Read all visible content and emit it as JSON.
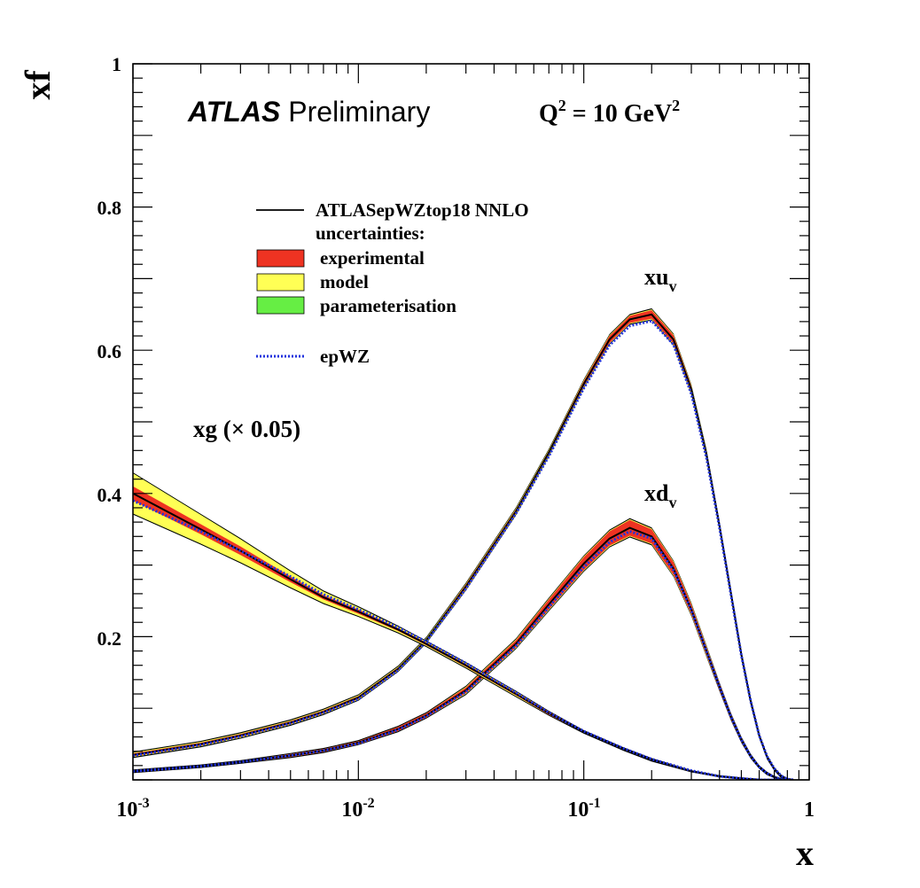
{
  "chart_data": {
    "type": "line",
    "xscale": "log",
    "xlim": [
      0.001,
      1
    ],
    "ylim": [
      0,
      1
    ],
    "xlabel": "x",
    "ylabel": "xf",
    "x_ticks": [
      {
        "value": 0.001,
        "base": "10",
        "exp": "-3"
      },
      {
        "value": 0.01,
        "base": "10",
        "exp": "-2"
      },
      {
        "value": 0.1,
        "base": "10",
        "exp": "-1"
      },
      {
        "value": 1,
        "base": "1",
        "exp": ""
      }
    ],
    "y_ticks": [
      {
        "value": 0.2,
        "label": "0.2"
      },
      {
        "value": 0.4,
        "label": "0.4"
      },
      {
        "value": 0.6,
        "label": "0.6"
      },
      {
        "value": 0.8,
        "label": "0.8"
      },
      {
        "value": 1.0,
        "label": "1"
      }
    ],
    "experiment": {
      "bold": "ATLAS",
      "rest": "Preliminary"
    },
    "scale": {
      "prefix": "Q",
      "sup1": "2",
      "mid": " = 10 GeV",
      "sup2": "2"
    },
    "legend": {
      "placement": "upper-left",
      "central": "ATLASepWZtop18 NNLO",
      "heading": "uncertainties:",
      "bands": [
        {
          "label": "experimental",
          "color": "#ee3322"
        },
        {
          "label": "model",
          "color": "#ffff55"
        },
        {
          "label": "parameterisation",
          "color": "#66ee44"
        }
      ],
      "comparison": "epWZ"
    },
    "colors": {
      "central": "#000000",
      "experimental": "#ee3322",
      "model": "#ffff55",
      "parameterisation": "#66ee44",
      "comparison": "#2233dd"
    },
    "series": [
      {
        "name": "xu_v",
        "label": {
          "main": "xu",
          "sub": "v"
        },
        "x": [
          0.001,
          0.002,
          0.003,
          0.005,
          0.007,
          0.01,
          0.015,
          0.02,
          0.03,
          0.05,
          0.07,
          0.1,
          0.13,
          0.16,
          0.2,
          0.25,
          0.3,
          0.35,
          0.4,
          0.45,
          0.5,
          0.55,
          0.6,
          0.65,
          0.7,
          0.75,
          0.8,
          0.85
        ],
        "central": [
          0.035,
          0.05,
          0.062,
          0.08,
          0.095,
          0.115,
          0.155,
          0.195,
          0.27,
          0.375,
          0.457,
          0.553,
          0.615,
          0.643,
          0.65,
          0.615,
          0.545,
          0.455,
          0.355,
          0.26,
          0.175,
          0.11,
          0.062,
          0.032,
          0.015,
          0.005,
          0.001,
          0.0
        ],
        "exp_unc": [
          0.002,
          0.002,
          0.002,
          0.002,
          0.002,
          0.002,
          0.002,
          0.002,
          0.003,
          0.003,
          0.003,
          0.004,
          0.005,
          0.005,
          0.006,
          0.006,
          0.005,
          0.005,
          0.004,
          0.004,
          0.003,
          0.003,
          0.002,
          0.002,
          0.001,
          0.001,
          0.0,
          0.0
        ],
        "model_unc": [
          0.001,
          0.001,
          0.001,
          0.001,
          0.001,
          0.001,
          0.001,
          0.001,
          0.001,
          0.001,
          0.001,
          0.001,
          0.001,
          0.001,
          0.001,
          0.001,
          0.001,
          0.001,
          0.001,
          0.001,
          0.001,
          0.001,
          0.0,
          0.0,
          0.0,
          0.0,
          0.0,
          0.0
        ],
        "comparison": [
          0.034,
          0.049,
          0.061,
          0.079,
          0.094,
          0.113,
          0.153,
          0.193,
          0.267,
          0.372,
          0.452,
          0.547,
          0.607,
          0.634,
          0.641,
          0.608,
          0.539,
          0.45,
          0.352,
          0.258,
          0.174,
          0.11,
          0.062,
          0.033,
          0.016,
          0.006,
          0.001,
          0.0
        ]
      },
      {
        "name": "xd_v",
        "label": {
          "main": "xd",
          "sub": "v"
        },
        "x": [
          0.001,
          0.002,
          0.003,
          0.005,
          0.007,
          0.01,
          0.015,
          0.02,
          0.03,
          0.05,
          0.07,
          0.1,
          0.13,
          0.16,
          0.2,
          0.25,
          0.3,
          0.35,
          0.4,
          0.45,
          0.5,
          0.55,
          0.6,
          0.65,
          0.7,
          0.75,
          0.8,
          0.85
        ],
        "central": [
          0.012,
          0.019,
          0.025,
          0.034,
          0.041,
          0.052,
          0.071,
          0.09,
          0.125,
          0.19,
          0.245,
          0.302,
          0.337,
          0.352,
          0.34,
          0.295,
          0.238,
          0.18,
          0.13,
          0.088,
          0.056,
          0.033,
          0.018,
          0.009,
          0.004,
          0.001,
          0.0,
          0.0
        ],
        "exp_unc": [
          0.001,
          0.001,
          0.001,
          0.002,
          0.002,
          0.002,
          0.003,
          0.003,
          0.004,
          0.005,
          0.007,
          0.009,
          0.01,
          0.011,
          0.01,
          0.009,
          0.007,
          0.006,
          0.005,
          0.004,
          0.003,
          0.002,
          0.001,
          0.001,
          0.0,
          0.0,
          0.0,
          0.0
        ],
        "model_unc": [
          0.0,
          0.0,
          0.0,
          0.0,
          0.0,
          0.0,
          0.0,
          0.0,
          0.001,
          0.001,
          0.001,
          0.001,
          0.001,
          0.001,
          0.001,
          0.001,
          0.001,
          0.001,
          0.0,
          0.0,
          0.0,
          0.0,
          0.0,
          0.0,
          0.0,
          0.0,
          0.0,
          0.0
        ],
        "comparison": [
          0.012,
          0.019,
          0.025,
          0.034,
          0.041,
          0.051,
          0.07,
          0.089,
          0.123,
          0.187,
          0.241,
          0.297,
          0.332,
          0.347,
          0.337,
          0.293,
          0.237,
          0.18,
          0.13,
          0.088,
          0.056,
          0.033,
          0.018,
          0.009,
          0.004,
          0.001,
          0.0,
          0.0
        ]
      },
      {
        "name": "xg (× 0.05)",
        "label": {
          "main": "xg (× 0.05)",
          "sub": ""
        },
        "x": [
          0.001,
          0.002,
          0.003,
          0.005,
          0.007,
          0.01,
          0.015,
          0.02,
          0.03,
          0.05,
          0.07,
          0.1,
          0.15,
          0.2,
          0.3,
          0.4,
          0.5,
          0.6,
          0.7,
          0.8
        ],
        "central": [
          0.4,
          0.35,
          0.32,
          0.28,
          0.255,
          0.235,
          0.21,
          0.19,
          0.16,
          0.12,
          0.093,
          0.067,
          0.043,
          0.028,
          0.012,
          0.005,
          0.002,
          0.0,
          0.0,
          0.0
        ],
        "exp_unc": [
          0.01,
          0.007,
          0.006,
          0.004,
          0.003,
          0.003,
          0.002,
          0.002,
          0.002,
          0.002,
          0.002,
          0.001,
          0.001,
          0.001,
          0.0,
          0.0,
          0.0,
          0.0,
          0.0,
          0.0
        ],
        "model_unc": [
          0.018,
          0.013,
          0.01,
          0.007,
          0.005,
          0.003,
          0.002,
          0.001,
          0.001,
          0.001,
          0.0,
          0.0,
          0.0,
          0.0,
          0.0,
          0.0,
          0.0,
          0.0,
          0.0,
          0.0
        ],
        "comparison": [
          0.39,
          0.347,
          0.32,
          0.284,
          0.259,
          0.238,
          0.213,
          0.193,
          0.163,
          0.122,
          0.094,
          0.068,
          0.044,
          0.029,
          0.013,
          0.005,
          0.002,
          0.0,
          0.0,
          0.0
        ]
      }
    ]
  }
}
